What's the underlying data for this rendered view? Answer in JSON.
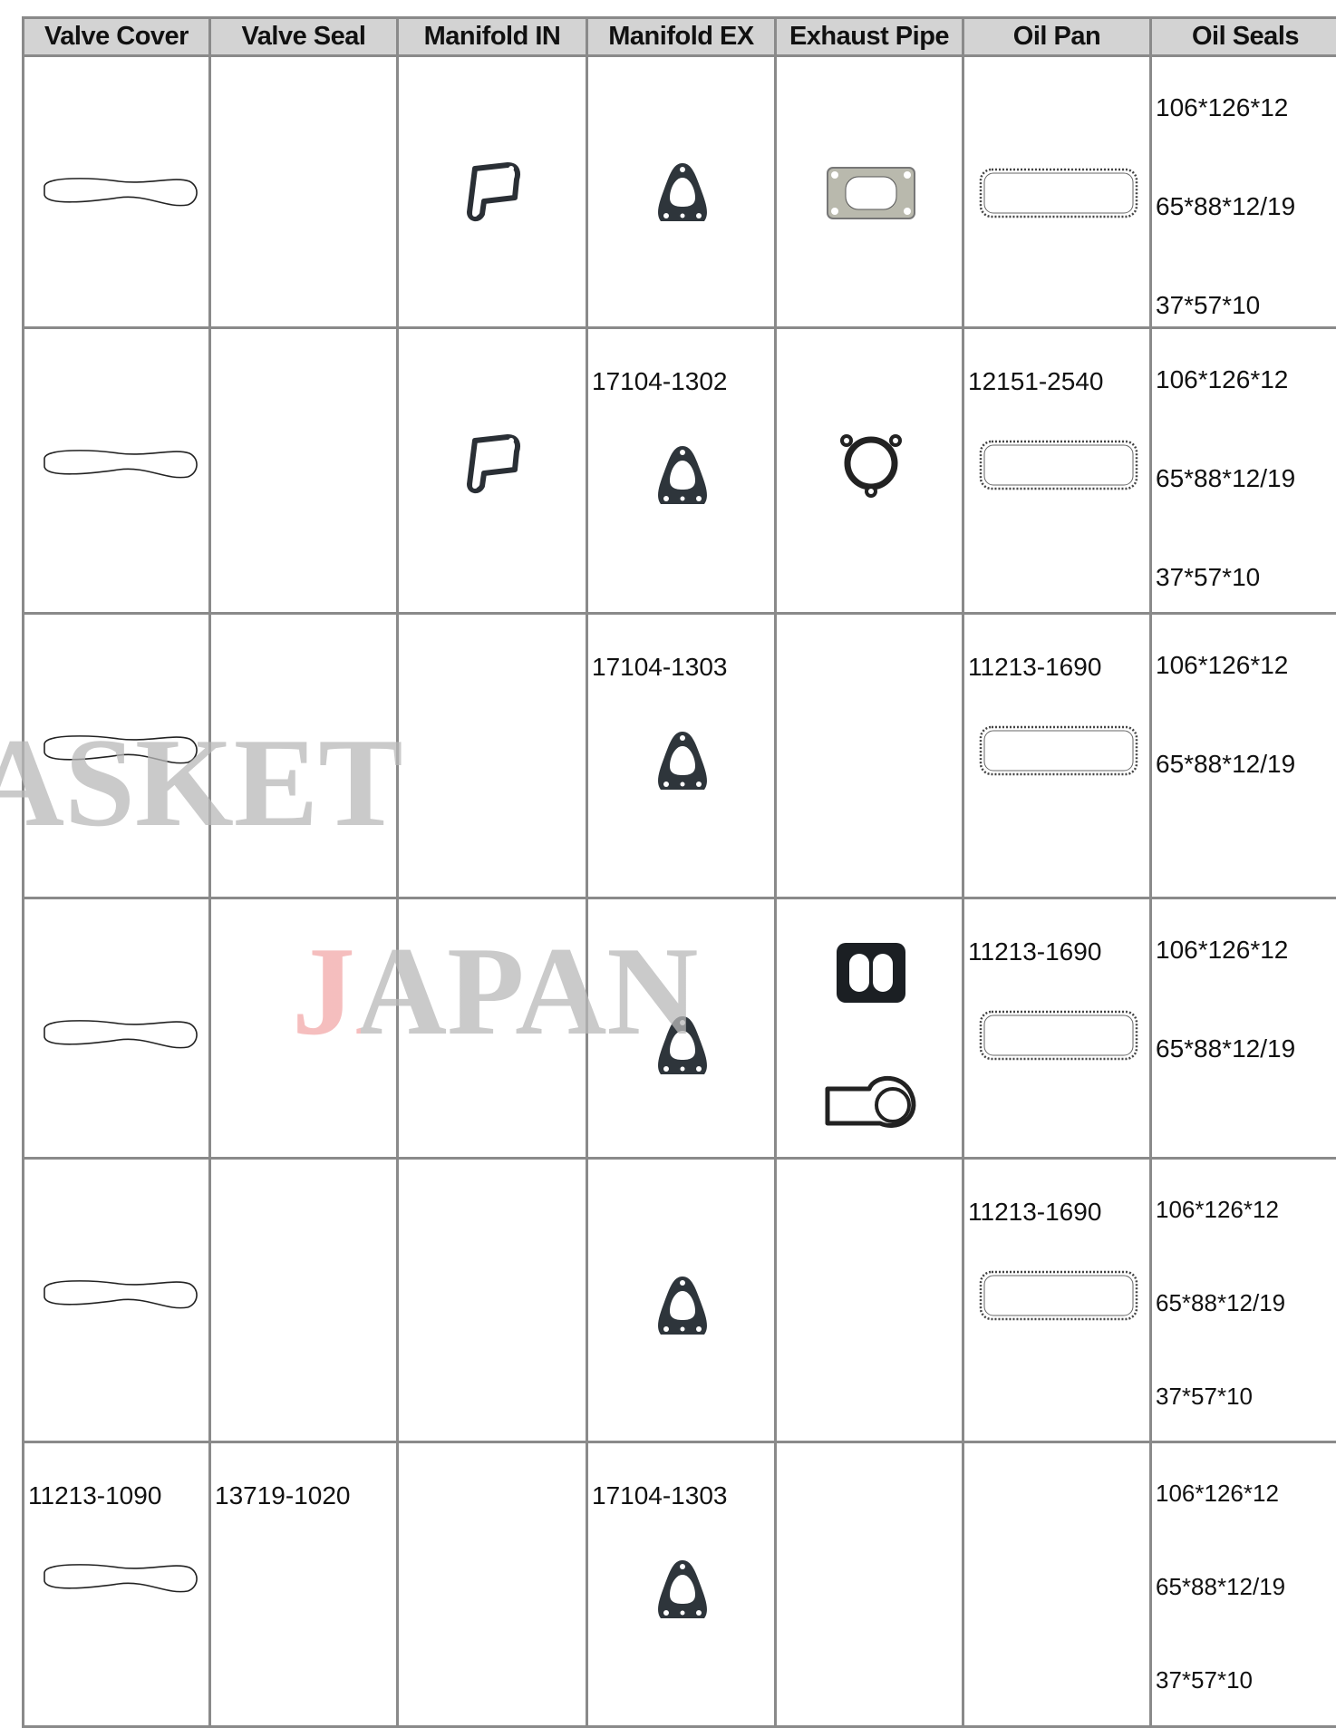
{
  "table": {
    "header": [
      "Valve Cover",
      "Valve Seal",
      "Manifold IN",
      "Manifold EX",
      "Exhaust Pipe",
      "Oil Pan",
      "Oil Seals"
    ],
    "rows": [
      [
        [],
        [],
        [],
        [],
        [],
        [],
        [
          "106*126*12",
          "65*88*12/19",
          "37*57*10"
        ]
      ],
      [
        [],
        [],
        [],
        [
          "17104-1302"
        ],
        [],
        [
          "12151-2540"
        ],
        [
          "106*126*12",
          "65*88*12/19",
          "37*57*10"
        ]
      ],
      [
        [],
        [],
        [],
        [
          "17104-1303"
        ],
        [],
        [
          "11213-1690"
        ],
        [
          "106*126*12",
          "65*88*12/19"
        ]
      ],
      [
        [],
        [],
        [],
        [],
        [],
        [
          "11213-1690"
        ],
        [
          "106*126*12",
          "65*88*12/19"
        ]
      ],
      [
        [],
        [],
        [],
        [],
        [],
        [
          "11213-1690"
        ],
        [
          "106*126*12",
          "65*88*12/19",
          "37*57*10"
        ]
      ],
      [
        [
          "11213-1090"
        ],
        [
          "13719-1020"
        ],
        [],
        [
          "17104-1303"
        ],
        [],
        [],
        [
          "106*126*12",
          "65*88*12/19",
          "37*57*10"
        ]
      ]
    ]
  },
  "watermark": [
    "ASKET",
    "JAPAN"
  ]
}
